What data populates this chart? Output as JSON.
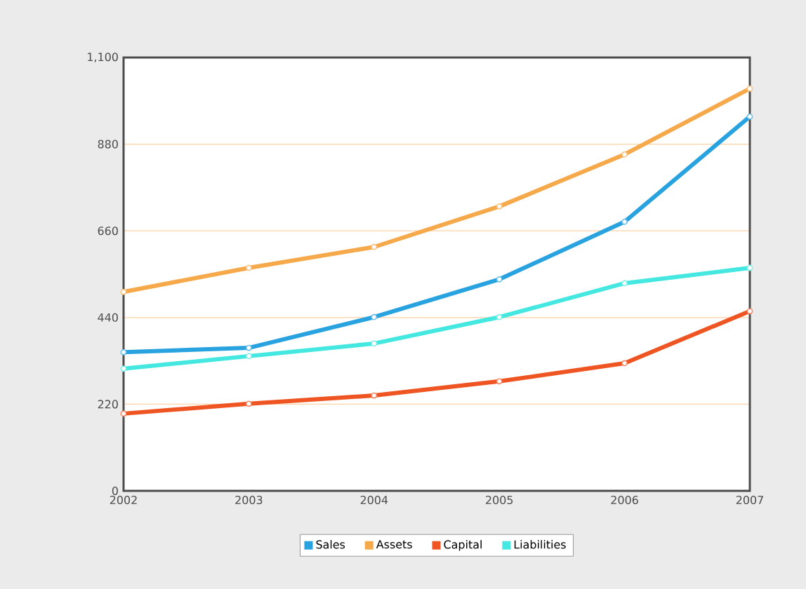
{
  "chart_data": {
    "type": "line",
    "categories": [
      "2002",
      "2003",
      "2004",
      "2005",
      "2006",
      "2007"
    ],
    "series": [
      {
        "name": "Sales",
        "color": "#29a3e0",
        "values": [
          352,
          363,
          441,
          537,
          683,
          950
        ]
      },
      {
        "name": "Assets",
        "color": "#f5a94a",
        "values": [
          505,
          566,
          619,
          722,
          854,
          1021
        ]
      },
      {
        "name": "Capital",
        "color": "#ee5522",
        "values": [
          196,
          221,
          242,
          278,
          324,
          456
        ]
      },
      {
        "name": "Liabilities",
        "color": "#44e8e0",
        "values": [
          310,
          342,
          374,
          441,
          527,
          566
        ]
      }
    ],
    "ylim": [
      0,
      1100
    ],
    "yticks": [
      0,
      220,
      440,
      660,
      880,
      {
        "value": 1100,
        "label": "1,100"
      }
    ],
    "grid": "y",
    "legend": "bottom",
    "marker": "circle",
    "line_style": "solid"
  }
}
